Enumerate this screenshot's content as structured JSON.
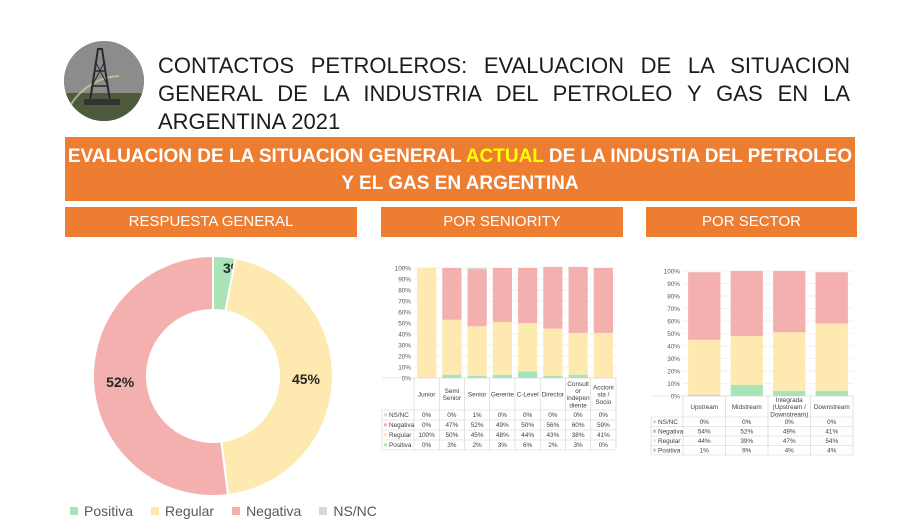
{
  "header": {
    "title": "CONTACTOS PETROLEROS: EVALUACION DE LA SITUACION GENERAL DE LA INDUSTRIA DEL PETROLEO Y GAS EN LA ARGENTINA 2021"
  },
  "banner": {
    "part1": "EVALUACION DE LA SITUACION GENERAL ",
    "highlight": "ACTUAL",
    "part2": " DE LA INDUSTIA DEL PETROLEO Y EL GAS EN ARGENTINA"
  },
  "sections": {
    "general": "RESPUESTA GENERAL",
    "seniority": "POR SENIORITY",
    "sector": "POR SECTOR"
  },
  "colors": {
    "accent": "#ED7D31",
    "positiva": "#A8E4B8",
    "regular": "#FEE9B0",
    "negativa": "#F4AFAF",
    "nsnc": "#D9D9D9"
  },
  "legend": [
    "Positiva",
    "Regular",
    "Negativa",
    "NS/NC"
  ],
  "chart_data": [
    {
      "type": "pie",
      "categories": [
        "Positiva",
        "Regular",
        "Negativa",
        "NS/NC"
      ],
      "values": [
        3,
        45,
        52,
        0
      ],
      "labels": [
        "3%",
        "45%",
        "52%",
        ""
      ]
    },
    {
      "type": "bar",
      "stacked": true,
      "categories": [
        "Junior",
        "Semi Senior",
        "Senior",
        "Gerente",
        "C-Level",
        "Director",
        "Consultor independiente",
        "Accionista / Socio"
      ],
      "category_labels": [
        [
          "Junior"
        ],
        [
          "Semi",
          "Senior"
        ],
        [
          "Senior"
        ],
        [
          "Gerente"
        ],
        [
          "C-Level"
        ],
        [
          "Director"
        ],
        [
          "Consult",
          "or",
          "indepen",
          "diente"
        ],
        [
          "Accioni",
          "sta /",
          "Socio"
        ]
      ],
      "ylim": [
        0,
        100
      ],
      "yticks": [
        "0%",
        "10%",
        "20%",
        "30%",
        "40%",
        "50%",
        "60%",
        "70%",
        "80%",
        "90%",
        "100%"
      ],
      "series": [
        {
          "name": "NS/NC",
          "values": [
            0,
            0,
            1,
            0,
            0,
            0,
            0,
            0
          ],
          "labels": [
            "0%",
            "0%",
            "1%",
            "0%",
            "0%",
            "0%",
            "0%",
            "0%"
          ]
        },
        {
          "name": "Negativa",
          "values": [
            0,
            47,
            52,
            49,
            50,
            56,
            60,
            59
          ],
          "labels": [
            "0%",
            "47%",
            "52%",
            "49%",
            "50%",
            "56%",
            "60%",
            "59%"
          ]
        },
        {
          "name": "Regular",
          "values": [
            100,
            50,
            45,
            48,
            44,
            43,
            38,
            41
          ],
          "labels": [
            "100%",
            "50%",
            "45%",
            "48%",
            "44%",
            "43%",
            "38%",
            "41%"
          ]
        },
        {
          "name": "Positiva",
          "values": [
            0,
            3,
            2,
            3,
            6,
            2,
            3,
            0
          ],
          "labels": [
            "0%",
            "3%",
            "2%",
            "3%",
            "6%",
            "2%",
            "3%",
            "0%"
          ]
        }
      ]
    },
    {
      "type": "bar",
      "stacked": true,
      "categories": [
        "Upstream",
        "Midstream",
        "Integrada (Upstream / Downstream)",
        "Downstream"
      ],
      "category_labels": [
        [
          "Upstream"
        ],
        [
          "Midstream"
        ],
        [
          "Integrada",
          "(Upstream /",
          "Downstream)"
        ],
        [
          "Downstream"
        ]
      ],
      "ylim": [
        0,
        100
      ],
      "yticks": [
        "0%",
        "10%",
        "20%",
        "30%",
        "40%",
        "50%",
        "60%",
        "70%",
        "80%",
        "90%",
        "100%"
      ],
      "series": [
        {
          "name": "NS/NC",
          "values": [
            0,
            0,
            0,
            0
          ],
          "labels": [
            "0%",
            "0%",
            "0%",
            "0%"
          ]
        },
        {
          "name": "Negativa",
          "values": [
            54,
            52,
            49,
            41
          ],
          "labels": [
            "54%",
            "52%",
            "49%",
            "41%"
          ]
        },
        {
          "name": "Regular",
          "values": [
            44,
            39,
            47,
            54
          ],
          "labels": [
            "44%",
            "39%",
            "47%",
            "54%"
          ]
        },
        {
          "name": "Positiva",
          "values": [
            1,
            9,
            4,
            4
          ],
          "labels": [
            "1%",
            "9%",
            "4%",
            "4%"
          ]
        }
      ]
    }
  ]
}
